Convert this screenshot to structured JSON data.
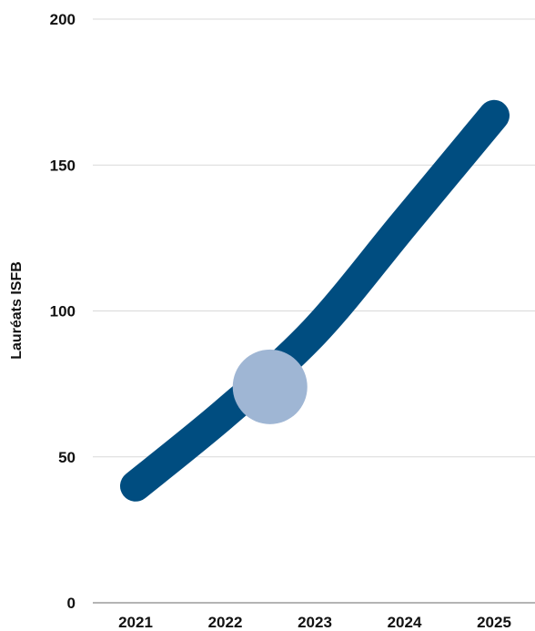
{
  "chart_data": {
    "type": "line",
    "title": "",
    "xlabel": "",
    "ylabel": "Lauréats ISFB",
    "x": [
      "2021",
      "2022",
      "2023",
      "2024",
      "2025"
    ],
    "series": [
      {
        "values": [
          40,
          65,
          93,
          130,
          167
        ]
      }
    ],
    "highlight_point": {
      "x": 2022.5,
      "y": 74
    },
    "yticks": [
      0,
      50,
      100,
      150,
      200
    ],
    "ylim": [
      0,
      200
    ],
    "grid": true,
    "colors": {
      "line": "#004d80",
      "highlight": "#9fb6d4",
      "grid": "#d9d9d9",
      "axis": "#888888"
    }
  }
}
